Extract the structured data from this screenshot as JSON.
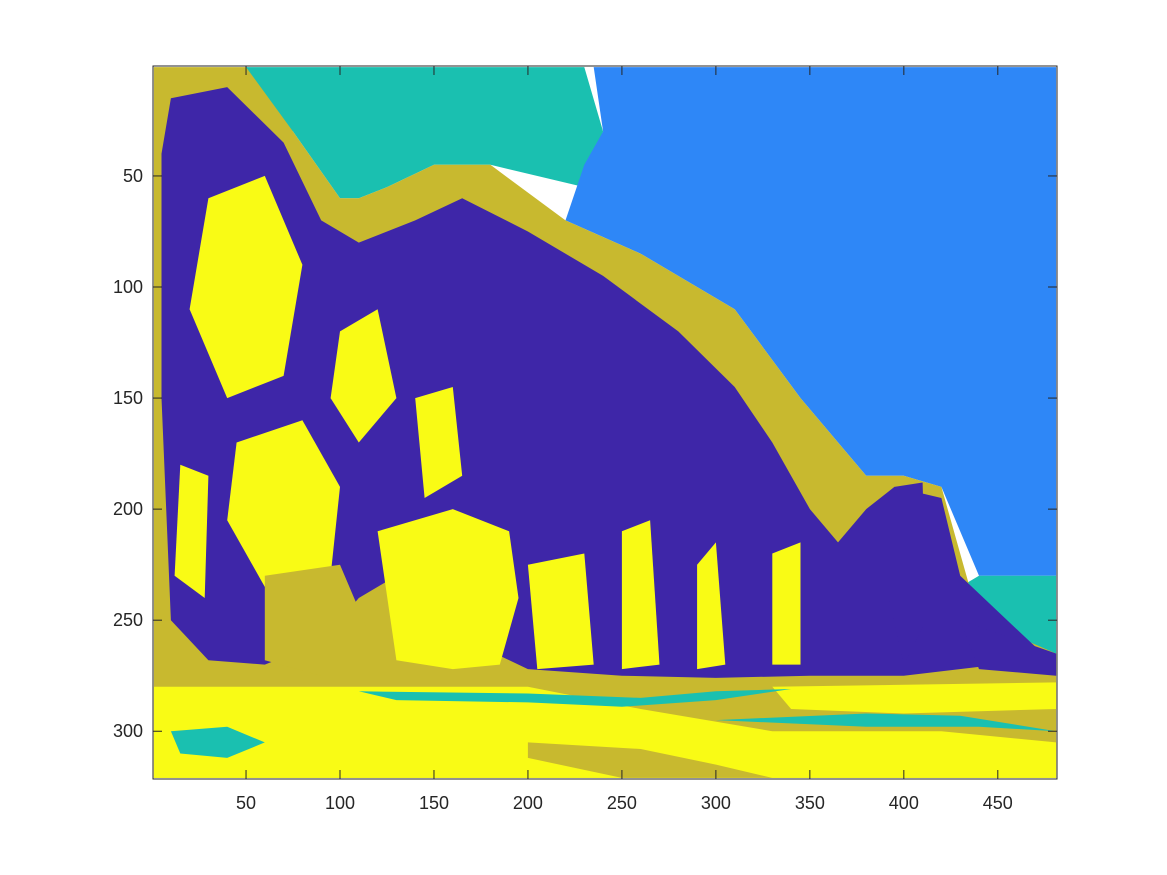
{
  "chart_data": {
    "type": "heatmap",
    "title": "",
    "xlabel": "",
    "ylabel": "",
    "xlim": [
      0.5,
      481.5
    ],
    "ylim": [
      0.5,
      321.5
    ],
    "y_direction": "reverse",
    "grid": false,
    "legend": "none",
    "xticks": [
      50,
      100,
      150,
      200,
      250,
      300,
      350,
      400,
      450
    ],
    "xtick_labels": [
      "50",
      "100",
      "150",
      "200",
      "250",
      "300",
      "350",
      "400",
      "450"
    ],
    "yticks": [
      50,
      100,
      150,
      200,
      250,
      300
    ],
    "ytick_labels": [
      "50",
      "100",
      "150",
      "200",
      "250",
      "300"
    ],
    "colormap": [
      "#3e26a8",
      "#2e87f7",
      "#1ac0b0",
      "#c8b92f",
      "#f9fb15"
    ],
    "classes": [
      {
        "value": 1,
        "color": "#3e26a8"
      },
      {
        "value": 2,
        "color": "#2e87f7"
      },
      {
        "value": 3,
        "color": "#1ac0b0"
      },
      {
        "value": 4,
        "color": "#c8b92f"
      },
      {
        "value": 5,
        "color": "#f9fb15"
      }
    ],
    "regions": [
      {
        "class": 3,
        "points": [
          [
            50,
            1
          ],
          [
            230,
            1
          ],
          [
            240,
            30
          ],
          [
            230,
            55
          ],
          [
            180,
            45
          ],
          [
            150,
            45
          ],
          [
            125,
            55
          ],
          [
            110,
            60
          ],
          [
            100,
            60
          ],
          [
            75,
            30
          ],
          [
            60,
            20
          ]
        ]
      },
      {
        "class": 2,
        "points": [
          [
            235,
            1
          ],
          [
            481,
            1
          ],
          [
            481,
            230
          ],
          [
            440,
            230
          ],
          [
            420,
            190
          ],
          [
            400,
            185
          ],
          [
            380,
            185
          ],
          [
            345,
            150
          ],
          [
            310,
            110
          ],
          [
            260,
            85
          ],
          [
            220,
            70
          ],
          [
            230,
            45
          ],
          [
            240,
            30
          ]
        ]
      },
      {
        "class": 3,
        "points": [
          [
            420,
            240
          ],
          [
            440,
            230
          ],
          [
            481,
            230
          ],
          [
            481,
            265
          ],
          [
            460,
            260
          ],
          [
            440,
            250
          ]
        ]
      },
      {
        "class": 4,
        "points": [
          [
            1,
            1
          ],
          [
            50,
            1
          ],
          [
            75,
            30
          ],
          [
            100,
            60
          ],
          [
            110,
            60
          ],
          [
            125,
            55
          ],
          [
            150,
            45
          ],
          [
            180,
            45
          ],
          [
            220,
            70
          ],
          [
            260,
            85
          ],
          [
            310,
            110
          ],
          [
            345,
            150
          ],
          [
            380,
            185
          ],
          [
            400,
            185
          ],
          [
            420,
            190
          ],
          [
            440,
            250
          ],
          [
            481,
            265
          ],
          [
            481,
            321
          ],
          [
            1,
            321
          ]
        ]
      },
      {
        "class": 1,
        "points": [
          [
            10,
            15
          ],
          [
            40,
            10
          ],
          [
            70,
            35
          ],
          [
            90,
            70
          ],
          [
            110,
            80
          ],
          [
            140,
            70
          ],
          [
            165,
            60
          ],
          [
            200,
            75
          ],
          [
            240,
            95
          ],
          [
            280,
            120
          ],
          [
            310,
            145
          ],
          [
            330,
            170
          ],
          [
            350,
            200
          ],
          [
            365,
            215
          ],
          [
            380,
            200
          ],
          [
            395,
            190
          ],
          [
            420,
            195
          ],
          [
            430,
            230
          ],
          [
            455,
            250
          ],
          [
            470,
            262
          ],
          [
            450,
            270
          ],
          [
            400,
            275
          ],
          [
            350,
            275
          ],
          [
            300,
            276
          ],
          [
            250,
            275
          ],
          [
            200,
            272
          ],
          [
            170,
            260
          ],
          [
            150,
            240
          ],
          [
            130,
            230
          ],
          [
            110,
            240
          ],
          [
            90,
            260
          ],
          [
            60,
            270
          ],
          [
            30,
            268
          ],
          [
            10,
            250
          ],
          [
            5,
            150
          ],
          [
            5,
            40
          ]
        ]
      },
      {
        "class": 5,
        "points": [
          [
            120,
            210
          ],
          [
            160,
            200
          ],
          [
            190,
            210
          ],
          [
            195,
            240
          ],
          [
            185,
            270
          ],
          [
            160,
            272
          ],
          [
            130,
            268
          ]
        ]
      },
      {
        "class": 5,
        "points": [
          [
            200,
            225
          ],
          [
            230,
            220
          ],
          [
            235,
            270
          ],
          [
            205,
            272
          ]
        ]
      },
      {
        "class": 5,
        "points": [
          [
            250,
            210
          ],
          [
            265,
            205
          ],
          [
            270,
            270
          ],
          [
            250,
            272
          ]
        ]
      },
      {
        "class": 5,
        "points": [
          [
            290,
            225
          ],
          [
            300,
            215
          ],
          [
            305,
            270
          ],
          [
            290,
            272
          ]
        ]
      },
      {
        "class": 5,
        "points": [
          [
            330,
            220
          ],
          [
            345,
            215
          ],
          [
            345,
            270
          ],
          [
            330,
            270
          ]
        ]
      },
      {
        "class": 5,
        "points": [
          [
            30,
            60
          ],
          [
            60,
            50
          ],
          [
            80,
            90
          ],
          [
            70,
            140
          ],
          [
            40,
            150
          ],
          [
            20,
            110
          ]
        ]
      },
      {
        "class": 5,
        "points": [
          [
            45,
            170
          ],
          [
            80,
            160
          ],
          [
            100,
            190
          ],
          [
            95,
            230
          ],
          [
            60,
            235
          ],
          [
            40,
            205
          ]
        ]
      },
      {
        "class": 5,
        "points": [
          [
            100,
            120
          ],
          [
            120,
            110
          ],
          [
            130,
            150
          ],
          [
            110,
            170
          ],
          [
            95,
            150
          ]
        ]
      },
      {
        "class": 5,
        "points": [
          [
            140,
            150
          ],
          [
            160,
            145
          ],
          [
            165,
            185
          ],
          [
            145,
            195
          ]
        ]
      },
      {
        "class": 5,
        "points": [
          [
            15,
            180
          ],
          [
            30,
            185
          ],
          [
            28,
            240
          ],
          [
            12,
            230
          ]
        ]
      },
      {
        "class": 5,
        "points": [
          [
            1,
            280
          ],
          [
            200,
            280
          ],
          [
            260,
            290
          ],
          [
            330,
            300
          ],
          [
            420,
            300
          ],
          [
            481,
            305
          ],
          [
            481,
            321
          ],
          [
            1,
            321
          ]
        ]
      },
      {
        "class": 5,
        "points": [
          [
            330,
            280
          ],
          [
            481,
            278
          ],
          [
            481,
            290
          ],
          [
            400,
            292
          ],
          [
            340,
            290
          ]
        ]
      },
      {
        "class": 3,
        "points": [
          [
            110,
            282
          ],
          [
            200,
            283
          ],
          [
            260,
            285
          ],
          [
            300,
            282
          ],
          [
            340,
            281
          ],
          [
            300,
            286
          ],
          [
            250,
            289
          ],
          [
            200,
            287
          ],
          [
            130,
            286
          ]
        ]
      },
      {
        "class": 3,
        "points": [
          [
            300,
            295
          ],
          [
            380,
            292
          ],
          [
            430,
            293
          ],
          [
            481,
            300
          ],
          [
            440,
            298
          ],
          [
            380,
            298
          ]
        ]
      },
      {
        "class": 3,
        "points": [
          [
            10,
            300
          ],
          [
            40,
            298
          ],
          [
            60,
            305
          ],
          [
            40,
            312
          ],
          [
            15,
            310
          ]
        ]
      },
      {
        "class": 4,
        "points": [
          [
            200,
            305
          ],
          [
            260,
            308
          ],
          [
            300,
            315
          ],
          [
            330,
            321
          ],
          [
            250,
            321
          ],
          [
            200,
            312
          ]
        ]
      },
      {
        "class": 4,
        "points": [
          [
            60,
            230
          ],
          [
            100,
            225
          ],
          [
            115,
            255
          ],
          [
            90,
            275
          ],
          [
            60,
            268
          ]
        ]
      },
      {
        "class": 1,
        "points": [
          [
            395,
            190
          ],
          [
            410,
            188
          ],
          [
            412,
            250
          ],
          [
            400,
            270
          ],
          [
            392,
            240
          ]
        ]
      },
      {
        "class": 1,
        "points": [
          [
            430,
            250
          ],
          [
            481,
            265
          ],
          [
            481,
            275
          ],
          [
            440,
            272
          ]
        ]
      }
    ]
  }
}
